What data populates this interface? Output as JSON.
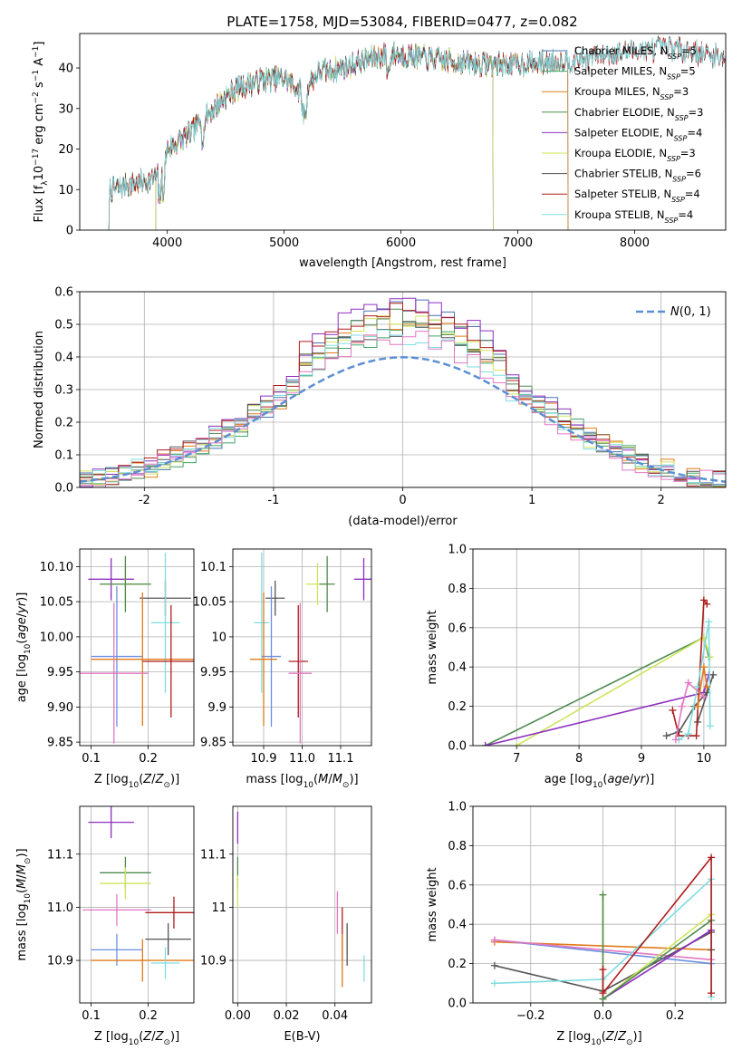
{
  "figure_title": "PLATE=1758, MJD=53084, FIBERID=0477, z=0.082",
  "chart_data": [
    {
      "id": "spectrum",
      "type": "line",
      "title": "PLATE=1758, MJD=53084, FIBERID=0477, z=0.082",
      "xlabel": "wavelength [Angstrom, rest frame]",
      "ylabel": "Flux [f_λ 10^-17 erg cm^-2 s^-1 A^-1]",
      "xlim": [
        3250,
        8780
      ],
      "ylim": [
        0,
        48.5
      ],
      "xticks": [
        4000,
        5000,
        6000,
        7000,
        8000
      ],
      "yticks": [
        0,
        10,
        20,
        30,
        40
      ],
      "grid": false,
      "legend_position": "top-right",
      "continuum_anchors": {
        "x": [
          3520,
          3650,
          3800,
          3900,
          3960,
          4000,
          4100,
          4200,
          4300,
          4400,
          4500,
          4600,
          4800,
          5000,
          5150,
          5200,
          5300,
          5500,
          5700,
          5900,
          6100,
          6300,
          6500,
          6700,
          6900,
          7100,
          7300,
          7500,
          7700,
          7900,
          8100,
          8300,
          8500,
          8700
        ],
        "y": [
          10,
          11,
          12,
          13,
          14,
          20,
          22,
          24,
          27,
          30,
          33,
          35,
          37,
          37.5,
          34,
          36,
          39,
          40,
          42,
          43.5,
          43,
          42,
          41.5,
          41,
          41,
          41,
          41.5,
          42,
          43,
          44,
          44.5,
          45,
          44,
          43
        ]
      },
      "series": [
        {
          "name": "Chabrier MILES",
          "nssp": "5",
          "color": "#4c72b0",
          "x_start": 3500,
          "x_end": 7430
        },
        {
          "name": "Salpeter MILES",
          "nssp": "5",
          "color": "#3fa56a",
          "x_start": 3500,
          "x_end": 7430
        },
        {
          "name": "Kroupa MILES",
          "nssp": "3",
          "color": "#e07a18",
          "x_start": 3500,
          "x_end": 7430
        },
        {
          "name": "Chabrier ELODIE",
          "nssp": "3",
          "color": "#4f8a4f",
          "x_start": 3900,
          "x_end": 6790
        },
        {
          "name": "Salpeter ELODIE",
          "nssp": "4",
          "color": "#8e2fbf",
          "x_start": 3900,
          "x_end": 6790
        },
        {
          "name": "Kroupa ELODIE",
          "nssp": "3",
          "color": "#cde55a",
          "x_start": 3900,
          "x_end": 6790
        },
        {
          "name": "Chabrier STELIB",
          "nssp": "6",
          "color": "#555555",
          "x_start": 3500,
          "x_end": 8780
        },
        {
          "name": "Salpeter STELIB",
          "nssp": "4",
          "color": "#b01c1c",
          "x_start": 3500,
          "x_end": 8780
        },
        {
          "name": "Kroupa STELIB",
          "nssp": "4",
          "color": "#7fdde0",
          "x_start": 3500,
          "x_end": 8780
        }
      ]
    },
    {
      "id": "residual_hist",
      "type": "histogram",
      "xlabel": "(data-model)/error",
      "ylabel": "Normed distribution",
      "xlim": [
        -2.5,
        2.5
      ],
      "ylim": [
        0,
        0.6
      ],
      "xticks": [
        -2,
        -1,
        0,
        1,
        2
      ],
      "yticks": [
        0.0,
        0.1,
        0.2,
        0.3,
        0.4,
        0.5,
        0.6
      ],
      "grid": true,
      "legend_position": "top-right",
      "reference_curve": {
        "name": "N(0,1)",
        "mean": 0,
        "sigma": 1,
        "color": "#5b8fd4",
        "style": "dashed"
      },
      "bin_width": 0.1,
      "series_colors": [
        "#4c72b0",
        "#3fa56a",
        "#e07a18",
        "#4f8a4f",
        "#8e2fbf",
        "#cde55a",
        "#555555",
        "#b01c1c",
        "#7fdde0",
        "#e377c2"
      ],
      "peaks": [
        0.55,
        0.48,
        0.5,
        0.52,
        0.57,
        0.51,
        0.49,
        0.55,
        0.47,
        0.46
      ]
    },
    {
      "id": "age_vs_Z",
      "type": "errorbar",
      "xlabel": "Z [log10(Z/Z⊙)]",
      "ylabel": "age  [log10(age/yr)]",
      "xlim": [
        0.08,
        0.28
      ],
      "ylim": [
        9.845,
        10.125
      ],
      "xticks": [
        0.1,
        0.2
      ],
      "yticks": [
        9.85,
        9.9,
        9.95,
        10.0,
        10.05,
        10.1
      ],
      "ytick_labels": [
        "9.85",
        "9.90",
        "9.95",
        "10.00",
        "10.05",
        "10.10"
      ],
      "grid": true,
      "points": [
        {
          "x": 0.135,
          "xerr": 0.04,
          "y": 10.082,
          "yerr": 0.03,
          "color": "#8e2fbf"
        },
        {
          "x": 0.16,
          "xerr": 0.045,
          "y": 10.075,
          "yerr": 0.03,
          "color": "#cde55a"
        },
        {
          "x": 0.16,
          "xerr": 0.045,
          "y": 10.075,
          "yerr": 0.04,
          "color": "#4f8a4f"
        },
        {
          "x": 0.23,
          "xerr": 0.045,
          "y": 10.055,
          "yerr": 0.025,
          "color": "#555555"
        },
        {
          "x": 0.23,
          "xerr": 0.025,
          "y": 10.02,
          "yerr": 0.1,
          "color": "#7fdde0"
        },
        {
          "x": 0.145,
          "xerr": 0.045,
          "y": 9.972,
          "yerr": 0.1,
          "color": "#6b8fe0"
        },
        {
          "x": 0.19,
          "xerr": 0.09,
          "y": 9.968,
          "yerr": 0.095,
          "color": "#e07a18"
        },
        {
          "x": 0.24,
          "xerr": 0.05,
          "y": 9.965,
          "yerr": 0.08,
          "color": "#b01c1c"
        },
        {
          "x": 0.14,
          "xerr": 0.06,
          "y": 9.948,
          "yerr": 0.1,
          "color": "#e377c2"
        }
      ]
    },
    {
      "id": "age_vs_mass",
      "type": "errorbar",
      "xlabel": "mass [log10(M/M⊙)]",
      "xlim": [
        10.82,
        11.18
      ],
      "ylim": [
        9.845,
        10.125
      ],
      "xticks": [
        10.9,
        11.0,
        11.1
      ],
      "xtick_labels": [
        "10.9",
        "11.0",
        "11.1"
      ],
      "yticks": [
        9.85,
        9.9,
        9.95,
        10.0,
        10.05,
        10.1
      ],
      "grid": true,
      "points": [
        {
          "x": 11.16,
          "xerr": 0.025,
          "y": 10.082,
          "yerr": 0.03,
          "color": "#8e2fbf"
        },
        {
          "x": 11.04,
          "xerr": 0.03,
          "y": 10.075,
          "yerr": 0.03,
          "color": "#cde55a"
        },
        {
          "x": 11.065,
          "xerr": 0.02,
          "y": 10.075,
          "yerr": 0.04,
          "color": "#4f8a4f"
        },
        {
          "x": 10.93,
          "xerr": 0.025,
          "y": 10.055,
          "yerr": 0.025,
          "color": "#555555"
        },
        {
          "x": 10.895,
          "xerr": 0.02,
          "y": 10.02,
          "yerr": 0.1,
          "color": "#7fdde0"
        },
        {
          "x": 10.92,
          "xerr": 0.025,
          "y": 9.972,
          "yerr": 0.1,
          "color": "#6b8fe0"
        },
        {
          "x": 10.9,
          "xerr": 0.035,
          "y": 9.968,
          "yerr": 0.095,
          "color": "#e07a18"
        },
        {
          "x": 10.99,
          "xerr": 0.025,
          "y": 9.965,
          "yerr": 0.08,
          "color": "#b01c1c"
        },
        {
          "x": 10.995,
          "xerr": 0.03,
          "y": 9.948,
          "yerr": 0.1,
          "color": "#e377c2"
        }
      ]
    },
    {
      "id": "mass_weight_vs_age",
      "type": "line",
      "xlabel": "age  [log10(age/yr)]",
      "ylabel": "mass weight",
      "xlim": [
        6.3,
        10.35
      ],
      "ylim": [
        0,
        1.0
      ],
      "xticks": [
        7,
        8,
        9,
        10
      ],
      "yticks": [
        0.0,
        0.2,
        0.4,
        0.6,
        0.8,
        1.0
      ],
      "grid": true,
      "series": [
        {
          "color": "#4f8a4f",
          "x": [
            6.5,
            10.0,
            10.08
          ],
          "y": [
            0.0,
            0.55,
            0.45
          ]
        },
        {
          "color": "#cde55a",
          "x": [
            7.0,
            10.0,
            10.1
          ],
          "y": [
            0.0,
            0.55,
            0.45
          ]
        },
        {
          "color": "#8e2fbf",
          "x": [
            6.5,
            10.0,
            10.08
          ],
          "y": [
            0.0,
            0.27,
            0.36
          ]
        },
        {
          "color": "#555555",
          "x": [
            9.4,
            9.6,
            9.85,
            10.05,
            10.15,
            9.9
          ],
          "y": [
            0.05,
            0.07,
            0.2,
            0.27,
            0.36,
            0.12
          ]
        },
        {
          "color": "#b01c1c",
          "x": [
            9.5,
            9.6,
            9.75,
            9.88,
            10.0,
            10.05
          ],
          "y": [
            0.18,
            0.05,
            0.05,
            0.05,
            0.74,
            0.72
          ]
        },
        {
          "color": "#7fdde0",
          "x": [
            9.6,
            9.75,
            9.9,
            10.08,
            10.1
          ],
          "y": [
            0.03,
            0.06,
            0.3,
            0.63,
            0.1
          ]
        },
        {
          "color": "#e377c2",
          "x": [
            9.55,
            9.65,
            9.75,
            10.0
          ],
          "y": [
            0.03,
            0.2,
            0.32,
            0.25
          ]
        },
        {
          "color": "#e07a18",
          "x": [
            9.9,
            10.0,
            10.05
          ],
          "y": [
            0.2,
            0.4,
            0.3
          ]
        }
      ]
    },
    {
      "id": "mass_vs_Z",
      "type": "errorbar",
      "xlabel": "Z [log10(Z/Z⊙)]",
      "ylabel": "mass [log10(M/M⊙)]",
      "xlim": [
        0.08,
        0.28
      ],
      "ylim": [
        10.82,
        11.19
      ],
      "xticks": [
        0.1,
        0.2
      ],
      "yticks": [
        10.9,
        11.0,
        11.1
      ],
      "ytick_labels": [
        "10.9",
        "11.0",
        "11.1"
      ],
      "grid": true,
      "points": [
        {
          "x": 0.135,
          "xerr": 0.04,
          "y": 11.16,
          "yerr": 0.03,
          "color": "#8e2fbf"
        },
        {
          "x": 0.16,
          "xerr": 0.045,
          "y": 11.065,
          "yerr": 0.03,
          "color": "#4f8a4f"
        },
        {
          "x": 0.16,
          "xerr": 0.045,
          "y": 11.045,
          "yerr": 0.03,
          "color": "#cde55a"
        },
        {
          "x": 0.245,
          "xerr": 0.05,
          "y": 10.99,
          "yerr": 0.03,
          "color": "#b01c1c"
        },
        {
          "x": 0.145,
          "xerr": 0.06,
          "y": 10.995,
          "yerr": 0.03,
          "color": "#e377c2"
        },
        {
          "x": 0.235,
          "xerr": 0.04,
          "y": 10.94,
          "yerr": 0.03,
          "color": "#555555"
        },
        {
          "x": 0.145,
          "xerr": 0.045,
          "y": 10.92,
          "yerr": 0.03,
          "color": "#6b8fe0"
        },
        {
          "x": 0.19,
          "xerr": 0.09,
          "y": 10.9,
          "yerr": 0.04,
          "color": "#e07a18"
        },
        {
          "x": 0.23,
          "xerr": 0.025,
          "y": 10.895,
          "yerr": 0.03,
          "color": "#7fdde0"
        }
      ]
    },
    {
      "id": "mass_vs_ebv",
      "type": "errorbar",
      "xlabel": "E(B-V)",
      "xlim": [
        -0.002,
        0.055
      ],
      "ylim": [
        10.82,
        11.19
      ],
      "xticks": [
        0.0,
        0.02,
        0.04
      ],
      "xtick_labels": [
        "0.00",
        "0.02",
        "0.04"
      ],
      "yticks": [
        10.9,
        11.0,
        11.1
      ],
      "grid": true,
      "points": [
        {
          "x": 0.0,
          "xerr": 0.0,
          "y": 11.15,
          "yerr": 0.03,
          "color": "#8e2fbf"
        },
        {
          "x": 0.0,
          "xerr": 0.0,
          "y": 11.065,
          "yerr": 0.03,
          "color": "#4f8a4f"
        },
        {
          "x": 0.0,
          "xerr": 0.0,
          "y": 11.03,
          "yerr": 0.03,
          "color": "#cde55a"
        },
        {
          "x": 0.041,
          "xerr": 0.0,
          "y": 10.99,
          "yerr": 0.04,
          "color": "#e377c2"
        },
        {
          "x": 0.043,
          "xerr": 0.0,
          "y": 10.95,
          "yerr": 0.05,
          "color": "#b01c1c"
        },
        {
          "x": 0.045,
          "xerr": 0.0,
          "y": 10.93,
          "yerr": 0.04,
          "color": "#555555"
        },
        {
          "x": 0.043,
          "xerr": 0.0,
          "y": 10.9,
          "yerr": 0.05,
          "color": "#e07a18"
        },
        {
          "x": 0.052,
          "xerr": 0.0,
          "y": 10.885,
          "yerr": 0.025,
          "color": "#7fdde0"
        }
      ]
    },
    {
      "id": "mass_weight_vs_Z",
      "type": "line",
      "xlabel": "Z [log10(Z/Z⊙)]",
      "ylabel": "mass weight",
      "xlim": [
        -0.36,
        0.34
      ],
      "ylim": [
        0,
        1.0
      ],
      "xticks": [
        -0.2,
        0.0,
        0.2
      ],
      "xtick_labels": [
        "−0.2",
        "0.0",
        "0.2"
      ],
      "yticks": [
        0.0,
        0.2,
        0.4,
        0.6,
        0.8,
        1.0
      ],
      "grid": true,
      "series": [
        {
          "color": "#e07a18",
          "x": [
            -0.3,
            0.3
          ],
          "y": [
            0.31,
            0.27
          ]
        },
        {
          "color": "#6b8fe0",
          "x": [
            -0.3,
            0.3
          ],
          "y": [
            0.32,
            0.2
          ]
        },
        {
          "color": "#e377c2",
          "x": [
            -0.3,
            0.3
          ],
          "y": [
            0.32,
            0.22
          ]
        },
        {
          "color": "#555555",
          "x": [
            -0.3,
            0.0,
            0.3,
            0.3
          ],
          "y": [
            0.19,
            0.06,
            0.36,
            0.27
          ]
        },
        {
          "color": "#7fdde0",
          "x": [
            -0.3,
            0.0,
            0.3,
            0.3
          ],
          "y": [
            0.1,
            0.12,
            0.63,
            0.03
          ]
        },
        {
          "color": "#8e2fbf",
          "x": [
            0.0,
            0.3
          ],
          "y": [
            0.02,
            0.37
          ]
        },
        {
          "color": "#cde55a",
          "x": [
            0.0,
            0.0,
            0.3
          ],
          "y": [
            0.55,
            0.02,
            0.45
          ]
        },
        {
          "color": "#4f8a4f",
          "x": [
            0.0,
            0.0,
            0.3
          ],
          "y": [
            0.55,
            0.02,
            0.42
          ]
        },
        {
          "color": "#b01c1c",
          "x": [
            0.0,
            0.0,
            0.3,
            0.3
          ],
          "y": [
            0.17,
            0.05,
            0.74,
            0.05
          ]
        }
      ]
    }
  ]
}
